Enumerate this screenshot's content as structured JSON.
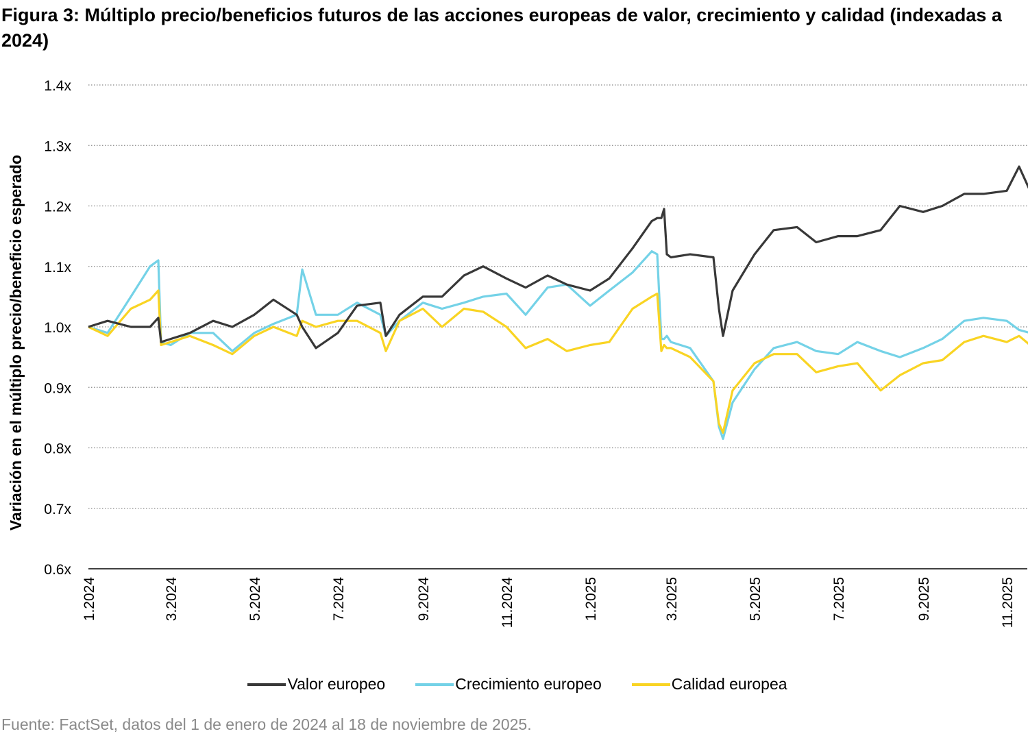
{
  "chart_data": {
    "type": "line",
    "title": "Figura 3: Múltiplo precio/beneficios futuros de las acciones europeas de valor, crecimiento y calidad (indexadas a 2024)",
    "xlabel": "",
    "ylabel": "Variación en el múltiplo precio/beneficio esperado",
    "ylim": [
      0.6,
      1.4
    ],
    "yticks": [
      "0.6x",
      "0.7x",
      "0.8x",
      "0.9x",
      "1.0x",
      "1.1x",
      "1.2x",
      "1.3x",
      "1.4x"
    ],
    "xticks": [
      "1.2024",
      "3.2024",
      "5.2024",
      "7.2024",
      "9.2024",
      "11.2024",
      "1.2025",
      "3.2025",
      "5.2025",
      "7.2025",
      "9.2025",
      "11.2025"
    ],
    "grid": "horizontal dotted",
    "legend": "bottom",
    "x": [
      "2024-01-01",
      "2024-01-15",
      "2024-02-01",
      "2024-02-15",
      "2024-02-21",
      "2024-02-23",
      "2024-03-01",
      "2024-03-15",
      "2024-04-01",
      "2024-04-15",
      "2024-05-01",
      "2024-05-15",
      "2024-06-01",
      "2024-06-05",
      "2024-06-15",
      "2024-07-01",
      "2024-07-15",
      "2024-08-01",
      "2024-08-05",
      "2024-08-15",
      "2024-09-01",
      "2024-09-15",
      "2024-10-01",
      "2024-10-15",
      "2024-11-01",
      "2024-11-15",
      "2024-12-01",
      "2024-12-15",
      "2025-01-01",
      "2025-01-15",
      "2025-02-01",
      "2025-02-15",
      "2025-02-19",
      "2025-02-22",
      "2025-02-24",
      "2025-02-26",
      "2025-03-01",
      "2025-03-15",
      "2025-04-01",
      "2025-04-05",
      "2025-04-08",
      "2025-04-15",
      "2025-05-01",
      "2025-05-15",
      "2025-06-01",
      "2025-06-15",
      "2025-07-01",
      "2025-07-15",
      "2025-08-01",
      "2025-08-15",
      "2025-09-01",
      "2025-09-15",
      "2025-10-01",
      "2025-10-15",
      "2025-11-01",
      "2025-11-10",
      "2025-11-18"
    ],
    "series": [
      {
        "name": "Valor europeo",
        "color": "#383838",
        "values": [
          1.0,
          1.01,
          1.0,
          1.0,
          1.015,
          0.975,
          0.98,
          0.99,
          1.01,
          1.0,
          1.02,
          1.045,
          1.02,
          1.0,
          0.965,
          0.99,
          1.035,
          1.04,
          0.985,
          1.02,
          1.05,
          1.05,
          1.085,
          1.1,
          1.08,
          1.065,
          1.085,
          1.07,
          1.06,
          1.08,
          1.13,
          1.175,
          1.18,
          1.18,
          1.195,
          1.12,
          1.115,
          1.12,
          1.115,
          1.03,
          0.985,
          1.06,
          1.12,
          1.16,
          1.165,
          1.14,
          1.15,
          1.15,
          1.16,
          1.2,
          1.19,
          1.2,
          1.22,
          1.22,
          1.225,
          1.265,
          1.225
        ]
      },
      {
        "name": "Crecimiento europeo",
        "color": "#74d2e7",
        "values": [
          1.0,
          0.99,
          1.05,
          1.1,
          1.11,
          0.975,
          0.97,
          0.99,
          0.99,
          0.96,
          0.99,
          1.005,
          1.02,
          1.095,
          1.02,
          1.02,
          1.04,
          1.02,
          0.985,
          1.01,
          1.04,
          1.03,
          1.04,
          1.05,
          1.055,
          1.02,
          1.065,
          1.07,
          1.035,
          1.06,
          1.09,
          1.125,
          1.12,
          0.98,
          0.98,
          0.985,
          0.975,
          0.965,
          0.91,
          0.835,
          0.815,
          0.875,
          0.93,
          0.965,
          0.975,
          0.96,
          0.955,
          0.975,
          0.96,
          0.95,
          0.965,
          0.98,
          1.01,
          1.015,
          1.01,
          0.995,
          0.99
        ]
      },
      {
        "name": "Calidad europea",
        "color": "#f9d423",
        "values": [
          1.0,
          0.985,
          1.03,
          1.045,
          1.06,
          0.97,
          0.975,
          0.985,
          0.97,
          0.955,
          0.985,
          1.0,
          0.985,
          1.01,
          1.0,
          1.01,
          1.01,
          0.99,
          0.96,
          1.01,
          1.03,
          1.0,
          1.03,
          1.025,
          1.0,
          0.965,
          0.98,
          0.96,
          0.97,
          0.975,
          1.03,
          1.05,
          1.055,
          0.96,
          0.97,
          0.965,
          0.965,
          0.95,
          0.91,
          0.84,
          0.825,
          0.895,
          0.94,
          0.955,
          0.955,
          0.925,
          0.935,
          0.94,
          0.895,
          0.92,
          0.94,
          0.945,
          0.975,
          0.985,
          0.975,
          0.985,
          0.97
        ]
      }
    ]
  },
  "source": "Fuente: FactSet, datos del 1 de enero de 2024 al 18 de noviembre de 2025."
}
